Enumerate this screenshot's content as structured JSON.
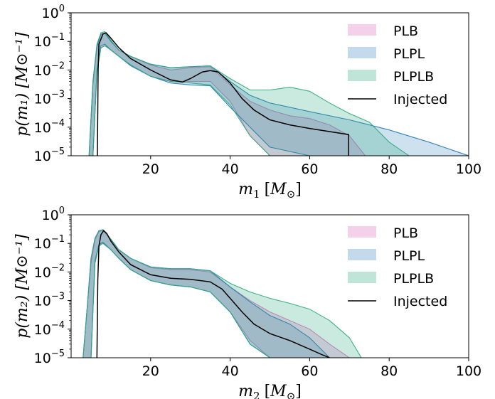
{
  "chart_data": [
    {
      "type": "area",
      "title": "",
      "xlabel": "m_1 [M_⊙]",
      "ylabel": "p(m_1) [M_⊙^{-1}]",
      "xlabel_var": "m",
      "xlabel_sub": "1",
      "xlabel_unit": "[M",
      "xlabel_unit_sub": "⊙",
      "xlabel_close": "]",
      "ylabel_text": "p(m₁) [M⊙⁻¹]",
      "xlim": [
        0,
        100
      ],
      "ylim": [
        1e-05,
        1
      ],
      "yscale": "log",
      "xticks": [
        20,
        40,
        60,
        80,
        100
      ],
      "xtick_labels": [
        "20",
        "40",
        "60",
        "80",
        "100"
      ],
      "yticks": [
        1,
        0.1,
        0.01,
        0.001,
        0.0001,
        1e-05
      ],
      "ytick_labels": [
        [
          "10",
          "0"
        ],
        [
          "10",
          "−1"
        ],
        [
          "10",
          "−2"
        ],
        [
          "10",
          "−3"
        ],
        [
          "10",
          "−4"
        ],
        [
          "10",
          "−5"
        ]
      ],
      "legend_placement": "top-right",
      "series": [
        {
          "name": "PLB",
          "kind": "band",
          "color": "#e377c2",
          "opacity": 0.3,
          "x": [
            4.5,
            5.5,
            6.5,
            7.5,
            8.5,
            10,
            12,
            15,
            20,
            25,
            30,
            35,
            40,
            45,
            50,
            55,
            60,
            65,
            70,
            74
          ],
          "upper": [
            1e-05,
            0.003,
            0.06,
            0.17,
            0.19,
            0.1,
            0.05,
            0.03,
            0.015,
            0.01,
            0.012,
            0.013,
            0.003,
            0.0008,
            0.0004,
            0.00025,
            0.0002,
            0.00012,
            5e-05,
            1e-05
          ],
          "lower": [
            1e-05,
            1e-05,
            0.008,
            0.06,
            0.07,
            0.05,
            0.03,
            0.015,
            0.006,
            0.004,
            0.004,
            0.004,
            0.0008,
            5e-05,
            1e-05,
            1e-05,
            1e-05,
            1e-05,
            1e-05,
            1e-05
          ]
        },
        {
          "name": "PLPL",
          "kind": "band",
          "color": "#1f77b4",
          "opacity": 0.22,
          "x": [
            4.5,
            5.5,
            6.5,
            7.5,
            8.5,
            10,
            12,
            15,
            20,
            25,
            30,
            35,
            40,
            45,
            50,
            60,
            70,
            80,
            90,
            100
          ],
          "upper": [
            1e-05,
            0.004,
            0.07,
            0.18,
            0.2,
            0.1,
            0.05,
            0.03,
            0.016,
            0.012,
            0.013,
            0.014,
            0.004,
            0.0013,
            0.0007,
            0.00035,
            0.00018,
            8e-05,
            3e-05,
            1e-05
          ],
          "lower": [
            1e-05,
            1e-05,
            0.01,
            0.07,
            0.08,
            0.05,
            0.03,
            0.014,
            0.006,
            0.0035,
            0.003,
            0.0028,
            0.0005,
            0.0001,
            2e-05,
            1e-05,
            1e-05,
            1e-05,
            1e-05,
            1e-05
          ]
        },
        {
          "name": "PLPLB",
          "kind": "band",
          "color": "#2ca87f",
          "opacity": 0.25,
          "x": [
            4.5,
            5.5,
            6.5,
            7.5,
            8.5,
            10,
            12,
            15,
            20,
            25,
            30,
            35,
            40,
            45,
            50,
            55,
            60,
            65,
            70,
            75,
            80,
            85
          ],
          "upper": [
            1e-05,
            0.004,
            0.08,
            0.2,
            0.22,
            0.11,
            0.05,
            0.03,
            0.016,
            0.012,
            0.013,
            0.014,
            0.005,
            0.002,
            0.002,
            0.0025,
            0.0018,
            0.0007,
            0.0003,
            0.00015,
            3e-05,
            1e-05
          ],
          "lower": [
            1e-05,
            1e-05,
            0.008,
            0.06,
            0.07,
            0.05,
            0.03,
            0.015,
            0.006,
            0.004,
            0.0035,
            0.003,
            0.0006,
            5e-05,
            1e-05,
            1e-05,
            1e-05,
            1e-05,
            1e-05,
            1e-05,
            1e-05,
            1e-05
          ]
        },
        {
          "name": "Injected",
          "kind": "line",
          "color": "#000000",
          "x": [
            6.6,
            6.8,
            7,
            8,
            8.8,
            10,
            12,
            15,
            20,
            25,
            28,
            30,
            33,
            35,
            37,
            40,
            43,
            46,
            50,
            55,
            60,
            65,
            69.8,
            69.8
          ],
          "y": [
            1e-05,
            0.01,
            0.08,
            0.18,
            0.2,
            0.13,
            0.06,
            0.025,
            0.01,
            0.0045,
            0.0038,
            0.005,
            0.0085,
            0.0095,
            0.0085,
            0.0035,
            0.001,
            0.0004,
            0.00018,
            0.00012,
            9e-05,
            7e-05,
            5.5e-05,
            1e-05
          ]
        }
      ]
    },
    {
      "type": "area",
      "title": "",
      "xlabel_var": "m",
      "xlabel_sub": "2",
      "xlabel_unit": "[M",
      "xlabel_unit_sub": "⊙",
      "xlabel_close": "]",
      "ylabel_text": "p(m₂) [M⊙⁻¹]",
      "xlim": [
        0,
        100
      ],
      "ylim": [
        1e-05,
        1
      ],
      "yscale": "log",
      "xticks": [
        20,
        40,
        60,
        80,
        100
      ],
      "xtick_labels": [
        "20",
        "40",
        "60",
        "80",
        "100"
      ],
      "yticks": [
        1,
        0.1,
        0.01,
        0.001,
        0.0001,
        1e-05
      ],
      "ytick_labels": [
        [
          "10",
          "0"
        ],
        [
          "10",
          "−1"
        ],
        [
          "10",
          "−2"
        ],
        [
          "10",
          "−3"
        ],
        [
          "10",
          "−4"
        ],
        [
          "10",
          "−5"
        ]
      ],
      "legend_placement": "top-right",
      "series": [
        {
          "name": "PLB",
          "kind": "band",
          "color": "#e377c2",
          "opacity": 0.3,
          "x": [
            3,
            4,
            5,
            6,
            7,
            8,
            10,
            12,
            15,
            20,
            25,
            30,
            35,
            40,
            45,
            50,
            55,
            60,
            65,
            70
          ],
          "upper": [
            1e-05,
            0.0005,
            0.02,
            0.13,
            0.26,
            0.28,
            0.13,
            0.06,
            0.03,
            0.014,
            0.012,
            0.012,
            0.01,
            0.003,
            0.001,
            0.0004,
            0.0002,
            0.0001,
            3e-05,
            1e-05
          ],
          "lower": [
            1e-05,
            1e-05,
            1e-05,
            0.02,
            0.08,
            0.1,
            0.06,
            0.03,
            0.012,
            0.005,
            0.0035,
            0.003,
            0.002,
            0.0004,
            4e-05,
            1e-05,
            1e-05,
            1e-05,
            1e-05,
            1e-05
          ]
        },
        {
          "name": "PLPL",
          "kind": "band",
          "color": "#1f77b4",
          "opacity": 0.22,
          "x": [
            3,
            4,
            5,
            6,
            7,
            8,
            10,
            12,
            15,
            20,
            25,
            30,
            35,
            40,
            45,
            50,
            55,
            60,
            65
          ],
          "upper": [
            1e-05,
            0.0005,
            0.03,
            0.15,
            0.28,
            0.3,
            0.14,
            0.06,
            0.03,
            0.015,
            0.013,
            0.013,
            0.011,
            0.003,
            0.0009,
            0.0003,
            0.00015,
            5e-05,
            1e-05
          ],
          "lower": [
            1e-05,
            1e-05,
            1e-05,
            0.025,
            0.09,
            0.11,
            0.06,
            0.03,
            0.012,
            0.005,
            0.0035,
            0.003,
            0.002,
            0.0004,
            3e-05,
            1e-05,
            1e-05,
            1e-05,
            1e-05
          ]
        },
        {
          "name": "PLPLB",
          "kind": "band",
          "color": "#2ca87f",
          "opacity": 0.25,
          "x": [
            3,
            4,
            5,
            6,
            7,
            8,
            10,
            12,
            15,
            20,
            25,
            30,
            35,
            40,
            45,
            50,
            55,
            60,
            65,
            70,
            73
          ],
          "upper": [
            1e-05,
            0.0005,
            0.03,
            0.15,
            0.28,
            0.3,
            0.14,
            0.06,
            0.03,
            0.015,
            0.013,
            0.013,
            0.011,
            0.004,
            0.002,
            0.0012,
            0.0008,
            0.0005,
            0.0002,
            5e-05,
            1e-05
          ],
          "lower": [
            1e-05,
            1e-05,
            1e-05,
            0.02,
            0.08,
            0.1,
            0.06,
            0.03,
            0.012,
            0.005,
            0.0035,
            0.003,
            0.002,
            0.0004,
            3e-05,
            1e-05,
            1e-05,
            1e-05,
            1e-05,
            1e-05,
            1e-05
          ]
        },
        {
          "name": "Injected",
          "kind": "line",
          "color": "#000000",
          "x": [
            6.5,
            6.7,
            7,
            7.5,
            8.2,
            9,
            10,
            12,
            15,
            20,
            25,
            30,
            35,
            38,
            40,
            43,
            46,
            50,
            55,
            60,
            63,
            65
          ],
          "y": [
            1e-05,
            0.005,
            0.08,
            0.2,
            0.28,
            0.22,
            0.12,
            0.05,
            0.018,
            0.008,
            0.006,
            0.0055,
            0.0045,
            0.0025,
            0.0012,
            0.0004,
            0.00015,
            7e-05,
            4e-05,
            2e-05,
            1.3e-05,
            1e-05
          ]
        }
      ]
    }
  ]
}
